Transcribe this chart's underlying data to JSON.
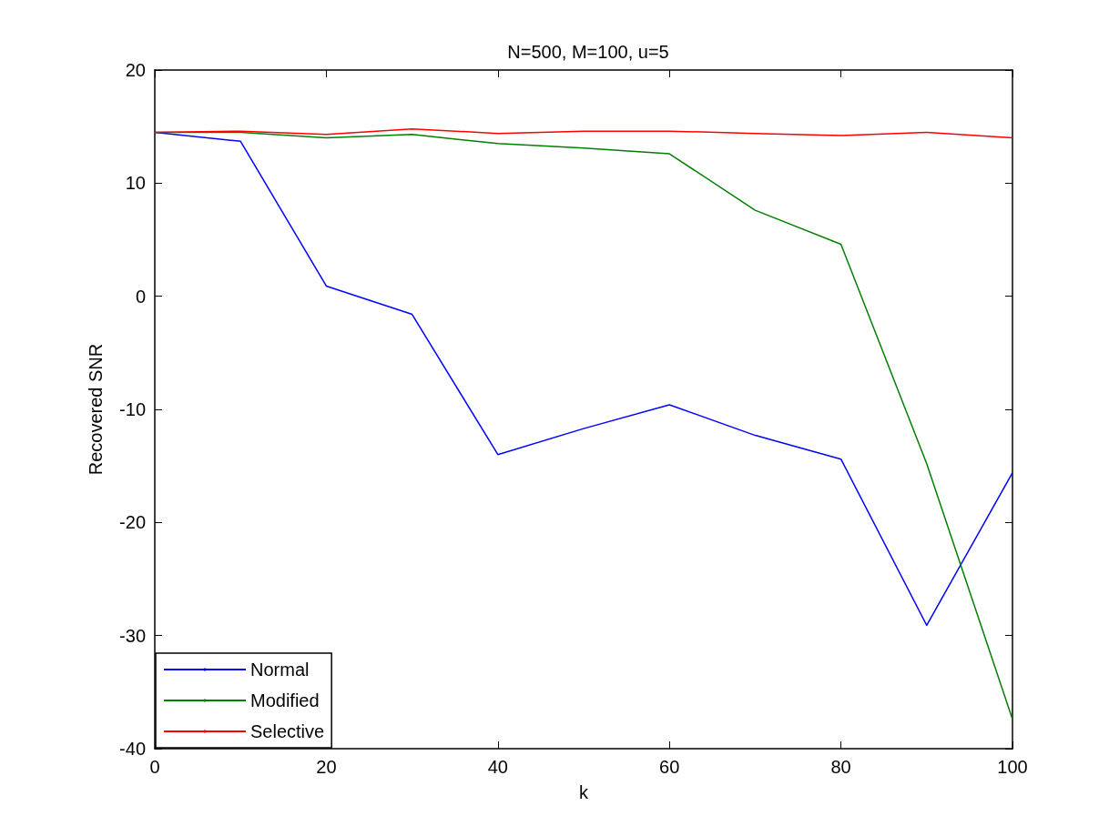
{
  "chart_data": {
    "type": "line",
    "title": "N=500, M=100, u=5",
    "xlabel": "k",
    "ylabel": "Recovered SNR",
    "x": [
      0,
      10,
      20,
      30,
      40,
      50,
      60,
      70,
      80,
      90,
      100
    ],
    "series": [
      {
        "name": "Normal",
        "color": "#0000ff",
        "values": [
          14.5,
          13.7,
          0.9,
          -1.6,
          -14.0,
          -11.7,
          -9.6,
          -12.3,
          -14.4,
          -29.1,
          -15.6
        ]
      },
      {
        "name": "Modified",
        "color": "#008000",
        "values": [
          14.5,
          14.5,
          14.0,
          14.3,
          13.5,
          13.1,
          12.6,
          7.6,
          4.6,
          -14.8,
          -37.4
        ]
      },
      {
        "name": "Selective",
        "color": "#ff0000",
        "values": [
          14.5,
          14.6,
          14.3,
          14.8,
          14.4,
          14.6,
          14.6,
          14.4,
          14.2,
          14.5,
          14.0
        ]
      }
    ],
    "xlim": [
      0,
      100
    ],
    "xticks": [
      0,
      20,
      40,
      60,
      80,
      100
    ],
    "ylim": [
      -40,
      20
    ],
    "yticks": [
      -40,
      -30,
      -20,
      -10,
      0,
      10,
      20
    ],
    "grid": false,
    "legend": "bottom left",
    "marker": "none",
    "line_style": "solid"
  }
}
